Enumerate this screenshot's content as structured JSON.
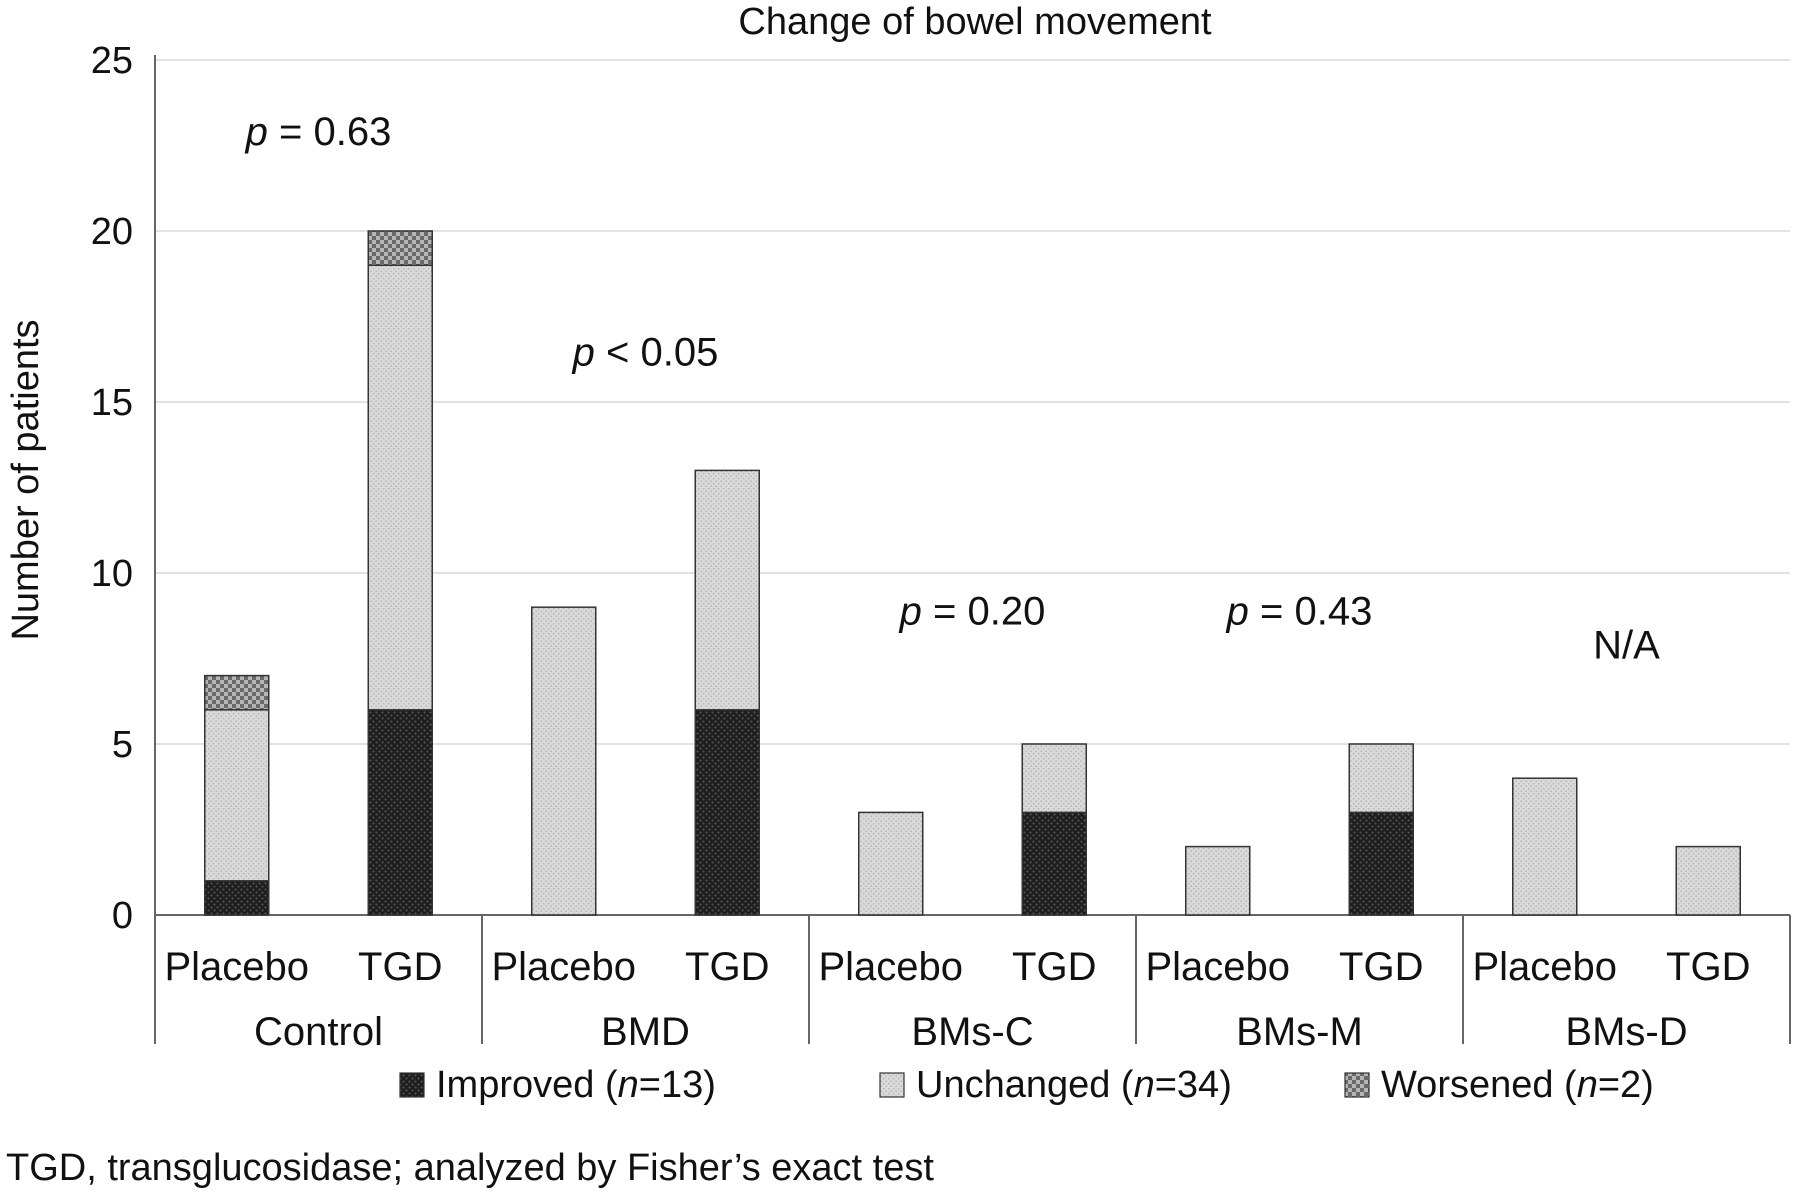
{
  "chart_data": {
    "type": "bar",
    "stacked": true,
    "title": "Change of bowel movement",
    "ylabel": "Number of patients",
    "xlabel": "",
    "ylim": [
      0,
      25
    ],
    "yticks": [
      0,
      5,
      10,
      15,
      20,
      25
    ],
    "grid": true,
    "legend_position": "bottom",
    "groups": [
      {
        "name": "Control",
        "annotation_prefix": "p",
        "annotation_rest": " = 0.63",
        "bars": [
          {
            "label": "Placebo",
            "values": [
              1,
              5,
              1
            ]
          },
          {
            "label": "TGD",
            "values": [
              6,
              13,
              1
            ]
          }
        ]
      },
      {
        "name": "BMD",
        "annotation_prefix": "p",
        "annotation_rest": " < 0.05",
        "bars": [
          {
            "label": "Placebo",
            "values": [
              0,
              9,
              0
            ]
          },
          {
            "label": "TGD",
            "values": [
              6,
              7,
              0
            ]
          }
        ]
      },
      {
        "name": "BMs-C",
        "annotation_prefix": "p",
        "annotation_rest": " = 0.20",
        "bars": [
          {
            "label": "Placebo",
            "values": [
              0,
              3,
              0
            ]
          },
          {
            "label": "TGD",
            "values": [
              3,
              2,
              0
            ]
          }
        ]
      },
      {
        "name": "BMs-M",
        "annotation_prefix": "p",
        "annotation_rest": " = 0.43",
        "bars": [
          {
            "label": "Placebo",
            "values": [
              0,
              2,
              0
            ]
          },
          {
            "label": "TGD",
            "values": [
              3,
              2,
              0
            ]
          }
        ]
      },
      {
        "name": "BMs-D",
        "annotation_prefix": "",
        "annotation_rest": "N/A",
        "bars": [
          {
            "label": "Placebo",
            "values": [
              0,
              4,
              0
            ]
          },
          {
            "label": "TGD",
            "values": [
              0,
              2,
              0
            ]
          }
        ]
      }
    ],
    "series": [
      {
        "name": "Improved",
        "legend_pre": "Improved (",
        "legend_italic": "n",
        "legend_post": "=13)",
        "color": "#2b2b2b",
        "pattern": "dark-dots"
      },
      {
        "name": "Unchanged",
        "legend_pre": "Unchanged (",
        "legend_italic": "n",
        "legend_post": "=34)",
        "color": "#d2d2d2",
        "pattern": "light-dots"
      },
      {
        "name": "Worsened",
        "legend_pre": "Worsened (",
        "legend_italic": "n",
        "legend_post": "=2)",
        "color": "#9a9a9a",
        "pattern": "checker"
      }
    ]
  },
  "footnote": "TGD, transglucosidase; analyzed by Fisher’s exact test"
}
